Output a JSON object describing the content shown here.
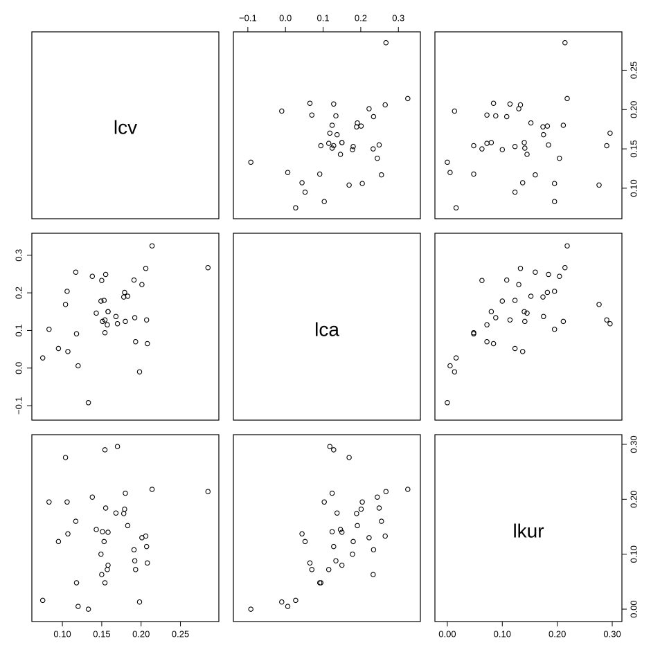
{
  "chart_data": {
    "type": "scatter",
    "subtype": "pairs",
    "variables": [
      "lcv",
      "lca",
      "lkur"
    ],
    "axes": {
      "lcv": {
        "range": [
          0.07,
          0.29
        ],
        "ticks": [
          0.1,
          0.15,
          0.2,
          0.25
        ],
        "tick_labels": [
          "0.10",
          "0.15",
          "0.20",
          "0.25"
        ]
      },
      "lca": {
        "range": [
          -0.12,
          0.34
        ],
        "ticks": [
          -0.1,
          0.0,
          0.1,
          0.2,
          0.3
        ],
        "tick_labels": [
          "−0.1",
          "0.0",
          "0.1",
          "0.2",
          "0.3"
        ]
      },
      "lkur": {
        "range": [
          -0.01,
          0.305
        ],
        "ticks": [
          0.0,
          0.1,
          0.2,
          0.3
        ],
        "tick_labels": [
          "0.00",
          "0.10",
          "0.20",
          "0.30"
        ]
      }
    },
    "axis_placement": {
      "bottom": [
        "lcv",
        null,
        "lkur"
      ],
      "top": [
        null,
        "lca",
        null
      ],
      "left": [
        null,
        "lca",
        null
      ],
      "right": [
        "lcv",
        null,
        "lkur"
      ]
    },
    "points": [
      {
        "lcv": 0.075,
        "lca": 0.027,
        "lkur": 0.016
      },
      {
        "lcv": 0.083,
        "lca": 0.103,
        "lkur": 0.195
      },
      {
        "lcv": 0.095,
        "lca": 0.052,
        "lkur": 0.123
      },
      {
        "lcv": 0.104,
        "lca": 0.169,
        "lkur": 0.276
      },
      {
        "lcv": 0.106,
        "lca": 0.204,
        "lkur": 0.195
      },
      {
        "lcv": 0.107,
        "lca": 0.044,
        "lkur": 0.137
      },
      {
        "lcv": 0.117,
        "lca": 0.255,
        "lkur": 0.16
      },
      {
        "lcv": 0.118,
        "lca": 0.091,
        "lkur": 0.048
      },
      {
        "lcv": 0.12,
        "lca": 0.006,
        "lkur": 0.005
      },
      {
        "lcv": 0.133,
        "lca": -0.092,
        "lkur": 0.0
      },
      {
        "lcv": 0.138,
        "lca": 0.244,
        "lkur": 0.204
      },
      {
        "lcv": 0.143,
        "lca": 0.146,
        "lkur": 0.145
      },
      {
        "lcv": 0.149,
        "lca": 0.178,
        "lkur": 0.1
      },
      {
        "lcv": 0.15,
        "lca": 0.233,
        "lkur": 0.063
      },
      {
        "lcv": 0.151,
        "lca": 0.124,
        "lkur": 0.141
      },
      {
        "lcv": 0.153,
        "lca": 0.18,
        "lkur": 0.123
      },
      {
        "lcv": 0.154,
        "lca": 0.128,
        "lkur": 0.29
      },
      {
        "lcv": 0.154,
        "lca": 0.094,
        "lkur": 0.048
      },
      {
        "lcv": 0.155,
        "lca": 0.249,
        "lkur": 0.184
      },
      {
        "lcv": 0.157,
        "lca": 0.115,
        "lkur": 0.072
      },
      {
        "lcv": 0.158,
        "lca": 0.15,
        "lkur": 0.14
      },
      {
        "lcv": 0.158,
        "lca": 0.15,
        "lkur": 0.08
      },
      {
        "lcv": 0.168,
        "lca": 0.137,
        "lkur": 0.175
      },
      {
        "lcv": 0.17,
        "lca": 0.118,
        "lkur": 0.296
      },
      {
        "lcv": 0.178,
        "lca": 0.189,
        "lkur": 0.174
      },
      {
        "lcv": 0.179,
        "lca": 0.201,
        "lkur": 0.182
      },
      {
        "lcv": 0.18,
        "lca": 0.124,
        "lkur": 0.211
      },
      {
        "lcv": 0.183,
        "lca": 0.191,
        "lkur": 0.152
      },
      {
        "lcv": 0.191,
        "lca": 0.234,
        "lkur": 0.108
      },
      {
        "lcv": 0.192,
        "lca": 0.134,
        "lkur": 0.088
      },
      {
        "lcv": 0.193,
        "lca": 0.07,
        "lkur": 0.072
      },
      {
        "lcv": 0.198,
        "lca": -0.01,
        "lkur": 0.013
      },
      {
        "lcv": 0.201,
        "lca": 0.222,
        "lkur": 0.13
      },
      {
        "lcv": 0.206,
        "lca": 0.265,
        "lkur": 0.133
      },
      {
        "lcv": 0.207,
        "lca": 0.128,
        "lkur": 0.114
      },
      {
        "lcv": 0.208,
        "lca": 0.065,
        "lkur": 0.084
      },
      {
        "lcv": 0.214,
        "lca": 0.325,
        "lkur": 0.218
      },
      {
        "lcv": 0.285,
        "lca": 0.267,
        "lkur": 0.214
      }
    ]
  }
}
